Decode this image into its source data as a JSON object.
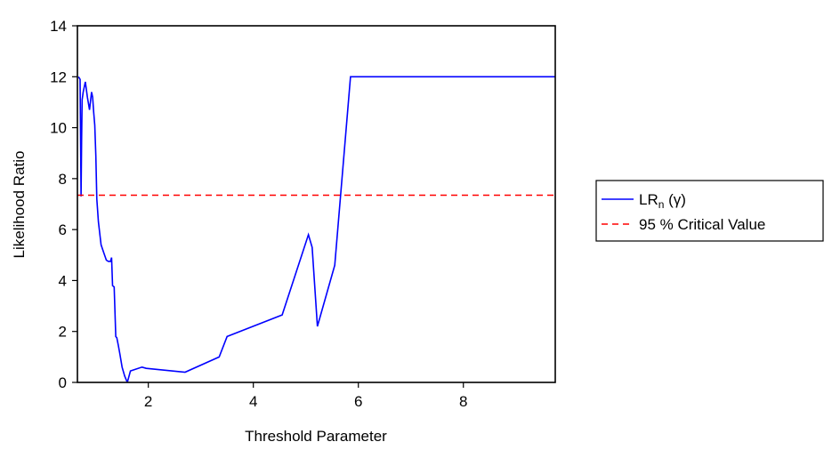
{
  "chart_data": {
    "type": "line",
    "xlabel": "Threshold Parameter",
    "ylabel": "Likelihood Ratio",
    "xlim": [
      0.65,
      9.75
    ],
    "ylim": [
      0,
      14
    ],
    "xticks": [
      2,
      4,
      6,
      8
    ],
    "yticks": [
      0,
      2,
      4,
      6,
      8,
      10,
      12,
      14
    ],
    "grid": false,
    "legend_position": "right",
    "series": [
      {
        "name": "LR",
        "name_subscript": "n",
        "name_suffix": " (γ)",
        "color": "#0000ff",
        "style": "solid",
        "x": [
          0.67,
          0.7,
          0.72,
          0.73,
          0.74,
          0.76,
          0.8,
          0.84,
          0.88,
          0.92,
          0.94,
          0.96,
          0.98,
          1.0,
          1.02,
          1.05,
          1.1,
          1.15,
          1.2,
          1.24,
          1.28,
          1.3,
          1.32,
          1.35,
          1.38,
          1.4,
          1.43,
          1.46,
          1.5,
          1.55,
          1.6,
          1.66,
          1.73,
          1.88,
          1.96,
          2.7,
          3.35,
          3.5,
          4.55,
          5.05,
          5.12,
          5.22,
          5.55,
          5.85,
          6.2,
          9.75
        ],
        "values": [
          12.0,
          11.9,
          7.3,
          9.5,
          11.1,
          11.4,
          11.8,
          11.2,
          10.7,
          11.4,
          11.2,
          10.6,
          10.1,
          8.9,
          7.2,
          6.3,
          5.4,
          5.1,
          4.8,
          4.75,
          4.75,
          4.9,
          3.8,
          3.75,
          1.8,
          1.75,
          1.45,
          1.1,
          0.6,
          0.25,
          0.0,
          0.45,
          0.5,
          0.6,
          0.55,
          0.4,
          1.0,
          1.8,
          2.65,
          5.8,
          5.3,
          2.2,
          4.6,
          12.0,
          12.0,
          12.0
        ]
      },
      {
        "name": "95 % Critical Value",
        "color": "#ff0000",
        "style": "dashed",
        "x": [
          0.65,
          9.75
        ],
        "values": [
          7.35,
          7.35
        ]
      }
    ]
  }
}
